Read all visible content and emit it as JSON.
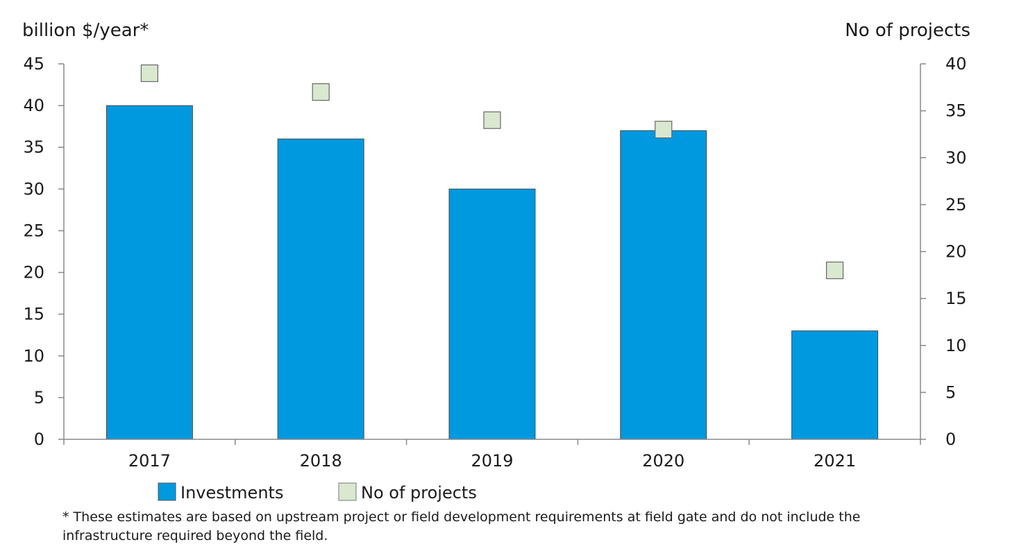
{
  "chart_data": {
    "type": "bar",
    "categories": [
      "2017",
      "2018",
      "2019",
      "2020",
      "2021"
    ],
    "series": [
      {
        "name": "Investments",
        "kind": "bar",
        "axis": "left",
        "color": "#0099e0",
        "values": [
          40,
          36,
          30,
          37,
          13
        ]
      },
      {
        "name": "No of projects",
        "kind": "marker",
        "axis": "right",
        "color": "#d9e8cf",
        "values": [
          39,
          37,
          34,
          33,
          18
        ]
      }
    ],
    "ylabel": "billion $/year*",
    "ylabel_right": "No of projects",
    "ylim": [
      0,
      45
    ],
    "yticks": [
      "0",
      "5",
      "10",
      "15",
      "20",
      "25",
      "30",
      "35",
      "40",
      "45"
    ],
    "ylim_right": [
      0,
      40
    ],
    "yticks_right": [
      "0",
      "5",
      "10",
      "15",
      "20",
      "25",
      "30",
      "35",
      "40"
    ],
    "grid": false,
    "legend_position": "bottom-left",
    "footnote_lines": [
      "* These estimates are based on upstream project or field development requirements at field gate and do not include the",
      "infrastructure required beyond the field."
    ]
  }
}
